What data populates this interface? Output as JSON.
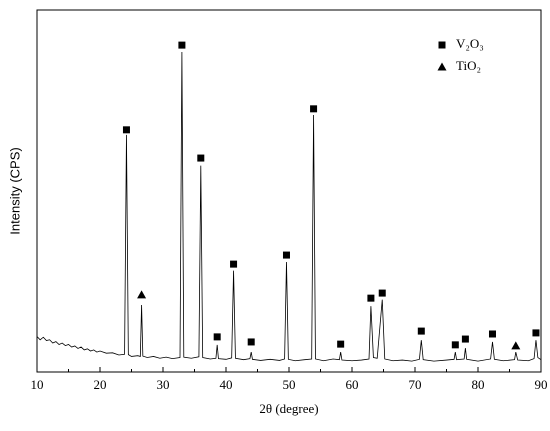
{
  "chart_data": {
    "type": "line",
    "xlabel": "2θ (degree)",
    "ylabel": "Intensity (CPS)",
    "xlim": [
      10,
      90
    ],
    "xticks": [
      10,
      20,
      30,
      40,
      50,
      60,
      70,
      80,
      90
    ],
    "ylim": [
      0,
      100
    ],
    "yticks": [],
    "color": "#000000",
    "x": [
      10,
      10.5,
      11,
      11.5,
      12,
      12.5,
      13,
      13.5,
      14,
      14.5,
      15,
      15.5,
      16,
      16.5,
      17,
      17.5,
      18,
      18.5,
      19,
      19.5,
      20,
      21,
      22,
      23,
      23.9,
      24.2,
      24.5,
      25,
      26,
      26.4,
      26.6,
      26.8,
      27.5,
      28.5,
      29.5,
      30.5,
      31.5,
      32.7,
      33.0,
      33.3,
      34.5,
      35.7,
      36.0,
      36.3,
      37.5,
      38.4,
      38.6,
      38.8,
      40,
      40.9,
      41.2,
      41.5,
      42.8,
      43.8,
      44.0,
      44.2,
      45.5,
      47,
      48.5,
      49.3,
      49.6,
      49.9,
      51,
      52.5,
      53.6,
      53.9,
      54.2,
      55.5,
      57,
      58.0,
      58.2,
      58.4,
      60,
      61.5,
      62.7,
      63.0,
      63.4,
      64.0,
      64.8,
      65.2,
      66.5,
      68,
      69.5,
      70.7,
      71.0,
      71.3,
      73,
      75,
      76.2,
      76.4,
      76.6,
      77.8,
      78.0,
      78.2,
      80,
      82.0,
      82.3,
      82.6,
      84,
      85.8,
      86.0,
      86.3,
      88,
      88.9,
      89.2,
      89.5,
      90
    ],
    "values": [
      9.8,
      8.9,
      9.6,
      8.7,
      8.9,
      8.0,
      8.4,
      7.6,
      8.0,
      7.3,
      7.6,
      6.9,
      7.2,
      6.5,
      6.9,
      6.1,
      6.4,
      5.8,
      6.1,
      5.5,
      5.8,
      5.2,
      5.3,
      4.7,
      4.9,
      65.5,
      4.8,
      4.3,
      4.5,
      4.3,
      18.5,
      4.4,
      4.0,
      4.3,
      3.8,
      4.1,
      3.7,
      4.0,
      88.4,
      4.1,
      3.8,
      4.2,
      57,
      4.0,
      3.6,
      3.8,
      7.5,
      3.7,
      3.5,
      3.9,
      28,
      3.8,
      3.4,
      3.7,
      5.5,
      3.5,
      3.2,
      3.5,
      3.2,
      3.6,
      30.4,
      3.5,
      3.1,
      3.4,
      3.6,
      71,
      3.6,
      3.1,
      3.6,
      3.4,
      5.5,
      3.3,
      3.1,
      3.3,
      3.6,
      18.2,
      4.0,
      3.8,
      20,
      3.6,
      3.1,
      3.3,
      3.0,
      3.5,
      8.8,
      3.4,
      3.0,
      3.3,
      3.5,
      5.5,
      3.4,
      3.6,
      6.6,
      3.5,
      3.0,
      3.6,
      8.3,
      3.5,
      3.1,
      3.4,
      5.5,
      3.3,
      3.1,
      3.7,
      8.8,
      4.0,
      3.4
    ],
    "legend": "upper right",
    "markers": [
      {
        "name": "V₂O₃",
        "symbol": "square",
        "color": "#000000",
        "x": [
          24.2,
          33.0,
          36.0,
          38.6,
          41.2,
          44.0,
          49.6,
          53.9,
          58.2,
          63.0,
          64.8,
          71.0,
          76.4,
          78.0,
          82.3,
          89.2
        ],
        "values": [
          66.9,
          90.3,
          59.1,
          9.7,
          29.8,
          8.3,
          32.3,
          72.7,
          7.7,
          20.4,
          21.8,
          11.3,
          7.5,
          9.1,
          10.5,
          10.8
        ]
      },
      {
        "name": "TiO₂",
        "symbol": "triangle",
        "color": "#000000",
        "x": [
          26.6,
          86.0
        ],
        "values": [
          21.3,
          7.2
        ]
      }
    ]
  }
}
